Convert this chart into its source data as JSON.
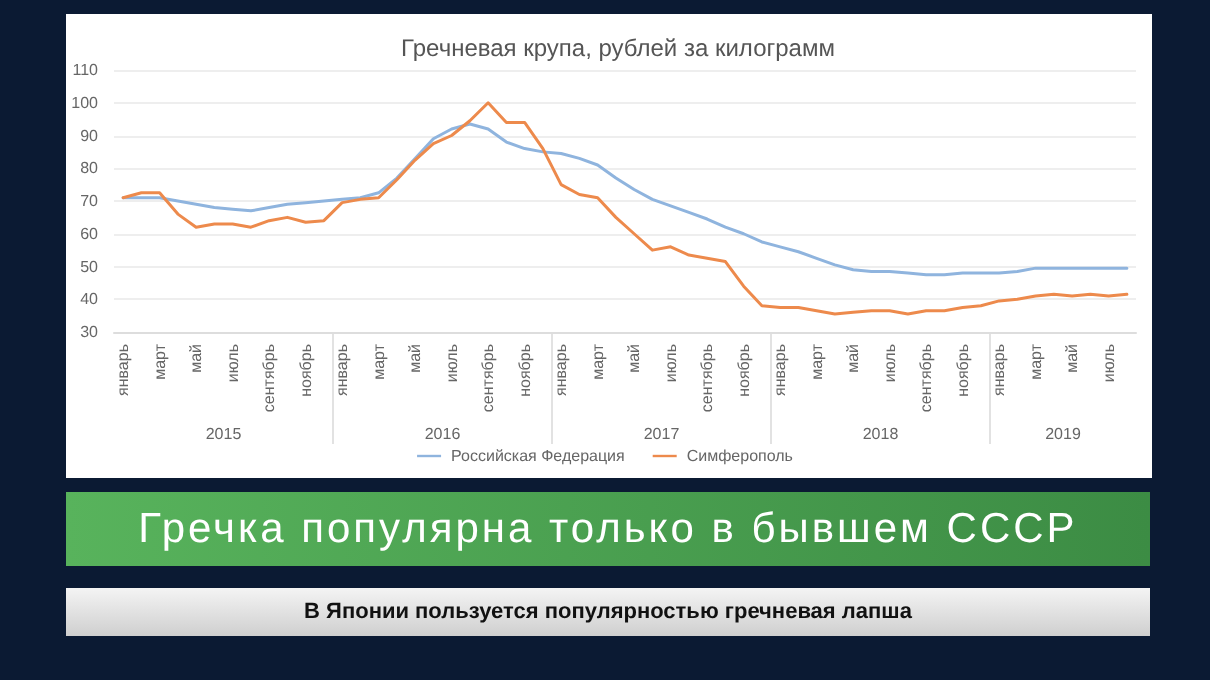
{
  "chart_data": {
    "type": "line",
    "title": "Гречневая крупа, рублей за килограмм",
    "categories": [
      "январь",
      null,
      "март",
      null,
      "май",
      null,
      "июль",
      null,
      "сентябрь",
      null,
      "ноябрь",
      null,
      "январь",
      null,
      "март",
      null,
      "май",
      null,
      "июль",
      null,
      "сентябрь",
      null,
      "ноябрь",
      null,
      "январь",
      null,
      "март",
      null,
      "май",
      null,
      "июль",
      null,
      "сентябрь",
      null,
      "ноябрь",
      null,
      "январь",
      null,
      "март",
      null,
      "май",
      null,
      "июль",
      null,
      "сентябрь",
      null,
      "ноябрь",
      null,
      "январь",
      null,
      "март",
      null,
      "май",
      null,
      "июль",
      null
    ],
    "series": [
      {
        "name": "Российская Федерация",
        "color": "#8fb4de",
        "values": [
          71,
          71,
          71,
          70,
          69,
          68,
          67.5,
          67,
          68,
          69,
          69.5,
          70,
          70.5,
          71,
          72.5,
          77,
          83,
          89,
          92,
          93.5,
          92,
          88,
          86,
          85,
          84.5,
          83,
          81,
          77,
          73.5,
          70.5,
          68.5,
          66.5,
          64.5,
          62,
          60,
          57.5,
          56,
          54.5,
          52.5,
          50.5,
          49,
          48.5,
          48.5,
          48,
          47.5,
          47.5,
          48,
          48,
          48,
          48.5,
          49.5,
          49.5,
          49.5,
          49.5,
          49.5,
          49.5
        ]
      },
      {
        "name": "Симферополь",
        "color": "#ed8a4c",
        "values": [
          71,
          72.5,
          72.5,
          66,
          62,
          63,
          63,
          62,
          64,
          65,
          63.5,
          64,
          69.5,
          70.5,
          71,
          76.5,
          82.5,
          87.5,
          90,
          94.5,
          100,
          94,
          94,
          86,
          75,
          72,
          71,
          65,
          60,
          55,
          56,
          53.5,
          52.5,
          51.5,
          44,
          38,
          37.5,
          37.5,
          36.5,
          35.5,
          36,
          36.5,
          36.5,
          35.5,
          36.5,
          36.5,
          37.5,
          38,
          39.5,
          40,
          41,
          41.5,
          41,
          41.5,
          41,
          41.5
        ]
      }
    ],
    "ylim": [
      30,
      110
    ],
    "yticks": [
      30,
      40,
      50,
      60,
      70,
      80,
      90,
      100,
      110
    ],
    "grid": "y",
    "legend": "bottom",
    "marker": "none",
    "line_style": "solid",
    "annotations": [
      "2015",
      "2016",
      "2017",
      "2018",
      "2019",
      "Гречка популярна только в бывшем СССР",
      "В Японии пользуется популярностью гречневая лапша"
    ]
  }
}
